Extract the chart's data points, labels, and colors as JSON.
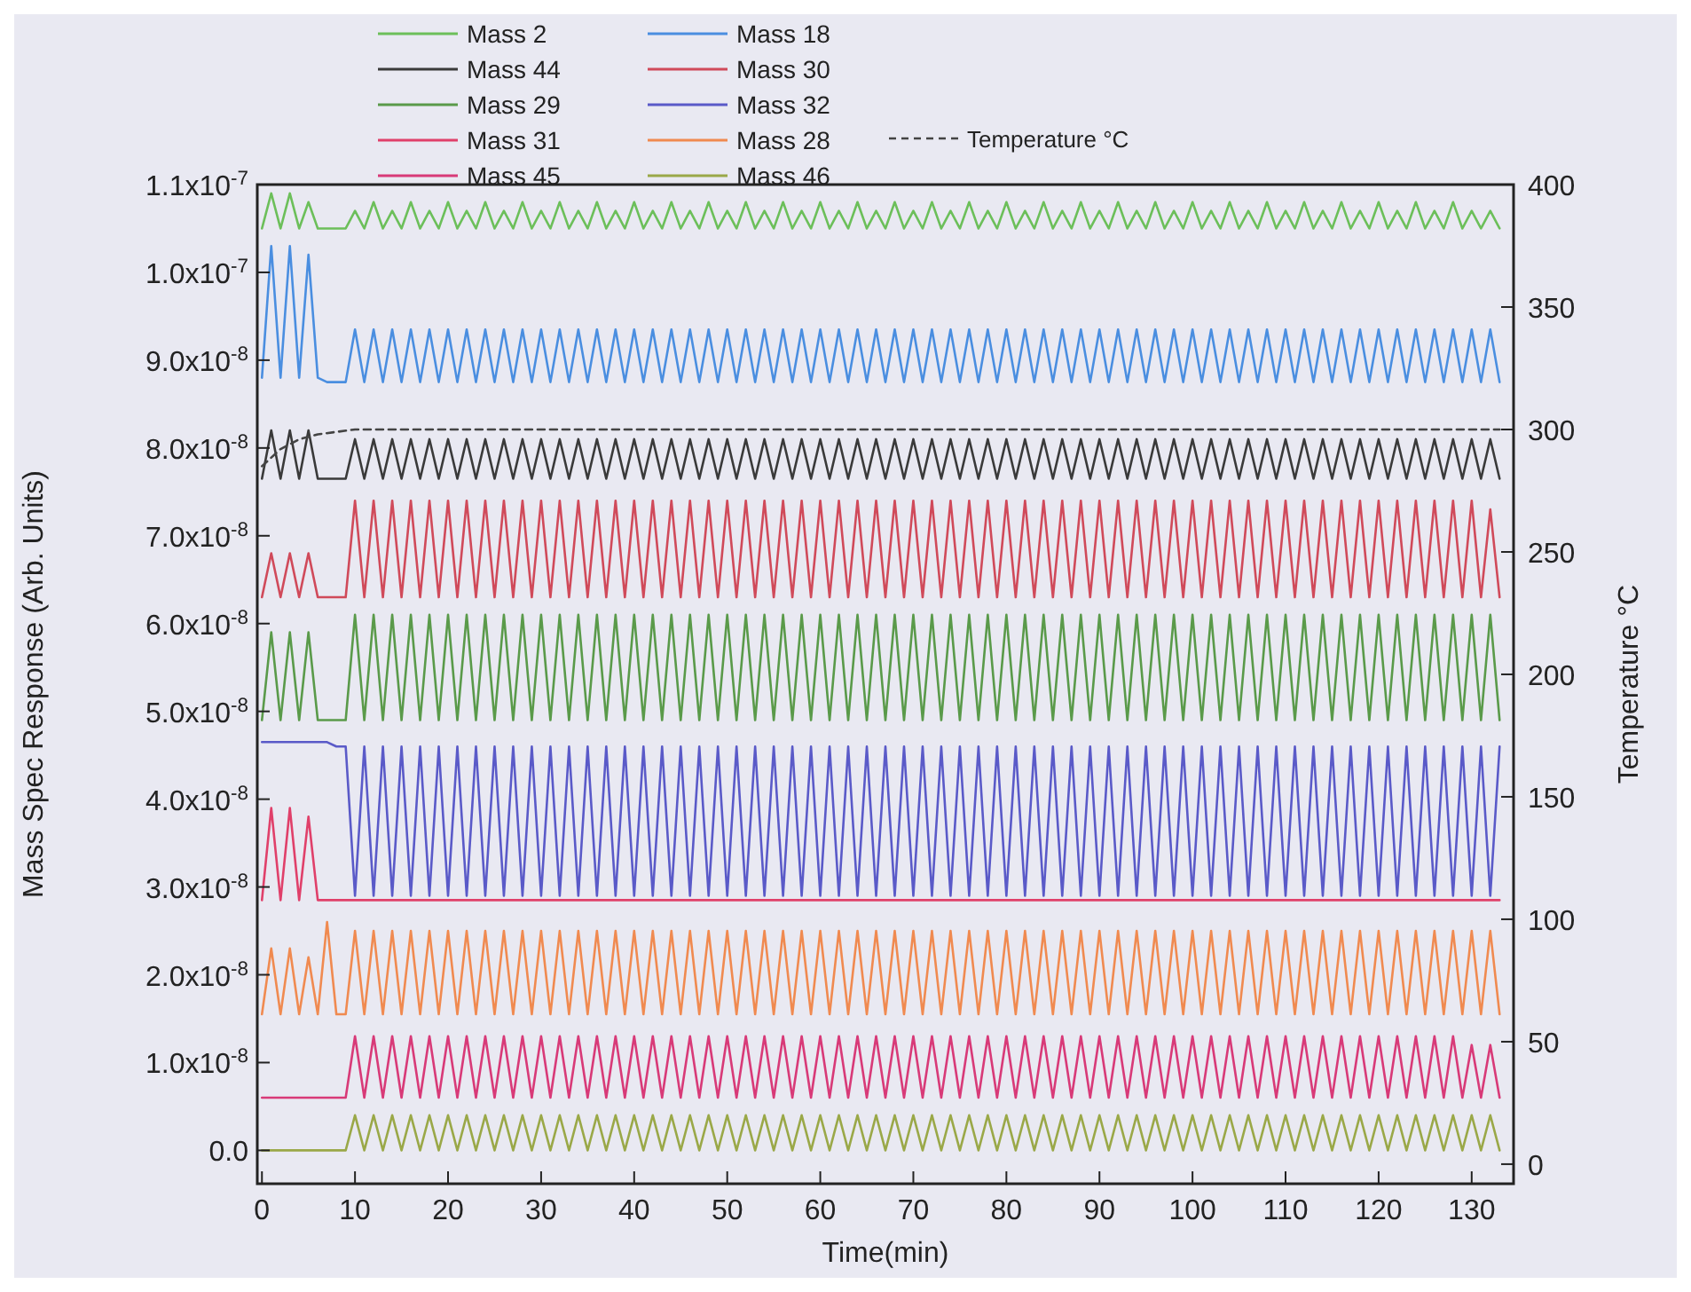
{
  "chart_data": {
    "type": "line",
    "xlabel": "Time(min)",
    "ylabel": "Mass Spec Response (Arb. Units)",
    "y2label": "Temperature °C",
    "x": [
      0,
      1,
      2,
      3,
      4,
      5,
      6,
      7,
      8,
      9,
      10,
      11,
      12,
      13,
      14,
      15,
      16,
      17,
      18,
      19,
      20,
      21,
      22,
      23,
      24,
      25,
      26,
      27,
      28,
      29,
      30,
      31,
      32,
      33,
      34,
      35,
      36,
      37,
      38,
      39,
      40,
      41,
      42,
      43,
      44,
      45,
      46,
      47,
      48,
      49,
      50,
      51,
      52,
      53,
      54,
      55,
      56,
      57,
      58,
      59,
      60,
      61,
      62,
      63,
      64,
      65,
      66,
      67,
      68,
      69,
      70,
      71,
      72,
      73,
      74,
      75,
      76,
      77,
      78,
      79,
      80,
      81,
      82,
      83,
      84,
      85,
      86,
      87,
      88,
      89,
      90,
      91,
      92,
      93,
      94,
      95,
      96,
      97,
      98,
      99,
      100,
      101,
      102,
      103,
      104,
      105,
      106,
      107,
      108,
      109,
      110,
      111,
      112,
      113,
      114,
      115,
      116,
      117,
      118,
      119,
      120,
      121,
      122,
      123,
      124,
      125,
      126,
      127,
      128,
      129,
      130,
      131,
      132,
      133
    ],
    "xlim": [
      -0.5,
      134.5
    ],
    "xticks": [
      0,
      10,
      20,
      30,
      40,
      50,
      60,
      70,
      80,
      90,
      100,
      110,
      120,
      130
    ],
    "ylim": [
      -3.8e-09,
      1.1e-07
    ],
    "yticks": [
      {
        "value": 0,
        "label": "0.0"
      },
      {
        "value": 1e-08,
        "label": "1.0x10$^{-8}$"
      },
      {
        "value": 2e-08,
        "label": "2.0x10$^{-8}$"
      },
      {
        "value": 3e-08,
        "label": "3.0x10$^{-8}$"
      },
      {
        "value": 4e-08,
        "label": "4.0x10$^{-8}$"
      },
      {
        "value": 5e-08,
        "label": "5.0x10$^{-8}$"
      },
      {
        "value": 6e-08,
        "label": "6.0x10$^{-8}$"
      },
      {
        "value": 7e-08,
        "label": "7.0x10$^{-8}$"
      },
      {
        "value": 8e-08,
        "label": "8.0x10$^{-8}$"
      },
      {
        "value": 9e-08,
        "label": "9.0x10$^{-8}$"
      },
      {
        "value": 1e-07,
        "label": "1.0x10$^{-7}$"
      },
      {
        "value": 1.1e-07,
        "label": "1.1x10$^{-7}$"
      }
    ],
    "y2lim": [
      -8,
      400
    ],
    "y2ticks": [
      0,
      50,
      100,
      150,
      200,
      250,
      300,
      350,
      400
    ],
    "grid": false,
    "legend": "top",
    "series": [
      {
        "name": "Mass 2",
        "color": "#6cbf5a",
        "values": [
          1.05e-07,
          1.09e-07,
          1.05e-07,
          1.09e-07,
          1.05e-07,
          1.08e-07,
          1.05e-07,
          1.05e-07,
          1.05e-07,
          1.05e-07,
          1.07e-07,
          1.05e-07,
          1.08e-07,
          1.05e-07,
          1.07e-07,
          1.05e-07,
          1.08e-07,
          1.05e-07,
          1.07e-07,
          1.05e-07,
          1.08e-07,
          1.05e-07,
          1.07e-07,
          1.05e-07,
          1.08e-07,
          1.05e-07,
          1.07e-07,
          1.05e-07,
          1.08e-07,
          1.05e-07,
          1.07e-07,
          1.05e-07,
          1.08e-07,
          1.05e-07,
          1.07e-07,
          1.05e-07,
          1.08e-07,
          1.05e-07,
          1.07e-07,
          1.05e-07,
          1.08e-07,
          1.05e-07,
          1.07e-07,
          1.05e-07,
          1.08e-07,
          1.05e-07,
          1.07e-07,
          1.05e-07,
          1.08e-07,
          1.05e-07,
          1.07e-07,
          1.05e-07,
          1.08e-07,
          1.05e-07,
          1.07e-07,
          1.05e-07,
          1.08e-07,
          1.05e-07,
          1.07e-07,
          1.05e-07,
          1.08e-07,
          1.05e-07,
          1.07e-07,
          1.05e-07,
          1.08e-07,
          1.05e-07,
          1.07e-07,
          1.05e-07,
          1.08e-07,
          1.05e-07,
          1.07e-07,
          1.05e-07,
          1.08e-07,
          1.05e-07,
          1.07e-07,
          1.05e-07,
          1.08e-07,
          1.05e-07,
          1.07e-07,
          1.05e-07,
          1.08e-07,
          1.05e-07,
          1.07e-07,
          1.05e-07,
          1.08e-07,
          1.05e-07,
          1.07e-07,
          1.05e-07,
          1.08e-07,
          1.05e-07,
          1.07e-07,
          1.05e-07,
          1.08e-07,
          1.05e-07,
          1.07e-07,
          1.05e-07,
          1.08e-07,
          1.05e-07,
          1.07e-07,
          1.05e-07,
          1.08e-07,
          1.05e-07,
          1.07e-07,
          1.05e-07,
          1.08e-07,
          1.05e-07,
          1.07e-07,
          1.05e-07,
          1.08e-07,
          1.05e-07,
          1.07e-07,
          1.05e-07,
          1.08e-07,
          1.05e-07,
          1.07e-07,
          1.05e-07,
          1.08e-07,
          1.05e-07,
          1.07e-07,
          1.05e-07,
          1.08e-07,
          1.05e-07,
          1.07e-07,
          1.05e-07,
          1.08e-07,
          1.05e-07,
          1.07e-07,
          1.05e-07,
          1.08e-07,
          1.05e-07,
          1.07e-07,
          1.05e-07,
          1.07e-07,
          1.05e-07
        ]
      },
      {
        "name": "Mass 18",
        "color": "#4a8ee0",
        "values": [
          8.8e-08,
          1.03e-07,
          8.8e-08,
          1.03e-07,
          8.8e-08,
          1.02e-07,
          8.8e-08,
          8.75e-08,
          8.75e-08,
          8.75e-08,
          9.35e-08,
          8.75e-08,
          9.35e-08,
          8.75e-08,
          9.35e-08,
          8.75e-08,
          9.35e-08,
          8.75e-08,
          9.35e-08,
          8.75e-08,
          9.35e-08,
          8.75e-08,
          9.35e-08,
          8.75e-08,
          9.35e-08,
          8.75e-08,
          9.35e-08,
          8.75e-08,
          9.35e-08,
          8.75e-08,
          9.35e-08,
          8.75e-08,
          9.35e-08,
          8.75e-08,
          9.35e-08,
          8.75e-08,
          9.35e-08,
          8.75e-08,
          9.35e-08,
          8.75e-08,
          9.35e-08,
          8.75e-08,
          9.35e-08,
          8.75e-08,
          9.35e-08,
          8.75e-08,
          9.35e-08,
          8.75e-08,
          9.35e-08,
          8.75e-08,
          9.35e-08,
          8.75e-08,
          9.35e-08,
          8.75e-08,
          9.35e-08,
          8.75e-08,
          9.35e-08,
          8.75e-08,
          9.35e-08,
          8.75e-08,
          9.35e-08,
          8.75e-08,
          9.35e-08,
          8.75e-08,
          9.35e-08,
          8.75e-08,
          9.35e-08,
          8.75e-08,
          9.35e-08,
          8.75e-08,
          9.35e-08,
          8.75e-08,
          9.35e-08,
          8.75e-08,
          9.35e-08,
          8.75e-08,
          9.35e-08,
          8.75e-08,
          9.35e-08,
          8.75e-08,
          9.35e-08,
          8.75e-08,
          9.35e-08,
          8.75e-08,
          9.35e-08,
          8.75e-08,
          9.35e-08,
          8.75e-08,
          9.35e-08,
          8.75e-08,
          9.35e-08,
          8.75e-08,
          9.35e-08,
          8.75e-08,
          9.35e-08,
          8.75e-08,
          9.35e-08,
          8.75e-08,
          9.35e-08,
          8.75e-08,
          9.35e-08,
          8.75e-08,
          9.35e-08,
          8.75e-08,
          9.35e-08,
          8.75e-08,
          9.35e-08,
          8.75e-08,
          9.35e-08,
          8.75e-08,
          9.35e-08,
          8.75e-08,
          9.35e-08,
          8.75e-08,
          9.35e-08,
          8.75e-08,
          9.35e-08,
          8.75e-08,
          9.35e-08,
          8.75e-08,
          9.35e-08,
          8.75e-08,
          9.35e-08,
          8.75e-08,
          9.35e-08,
          8.75e-08,
          9.35e-08,
          8.75e-08,
          9.35e-08,
          8.75e-08,
          9.35e-08,
          8.75e-08,
          9.35e-08,
          8.75e-08
        ]
      },
      {
        "name": "Mass 44",
        "color": "#3a3a3a",
        "values": [
          7.65e-08,
          8.2e-08,
          7.65e-08,
          8.2e-08,
          7.65e-08,
          8.2e-08,
          7.65e-08,
          7.65e-08,
          7.65e-08,
          7.65e-08,
          8.1e-08,
          7.65e-08,
          8.1e-08,
          7.65e-08,
          8.1e-08,
          7.65e-08,
          8.1e-08,
          7.65e-08,
          8.1e-08,
          7.65e-08,
          8.1e-08,
          7.65e-08,
          8.1e-08,
          7.65e-08,
          8.1e-08,
          7.65e-08,
          8.1e-08,
          7.65e-08,
          8.1e-08,
          7.65e-08,
          8.1e-08,
          7.65e-08,
          8.1e-08,
          7.65e-08,
          8.1e-08,
          7.65e-08,
          8.1e-08,
          7.65e-08,
          8.1e-08,
          7.65e-08,
          8.1e-08,
          7.65e-08,
          8.1e-08,
          7.65e-08,
          8.1e-08,
          7.65e-08,
          8.1e-08,
          7.65e-08,
          8.1e-08,
          7.65e-08,
          8.1e-08,
          7.65e-08,
          8.1e-08,
          7.65e-08,
          8.1e-08,
          7.65e-08,
          8.1e-08,
          7.65e-08,
          8.1e-08,
          7.65e-08,
          8.1e-08,
          7.65e-08,
          8.1e-08,
          7.65e-08,
          8.1e-08,
          7.65e-08,
          8.1e-08,
          7.65e-08,
          8.1e-08,
          7.65e-08,
          8.1e-08,
          7.65e-08,
          8.1e-08,
          7.65e-08,
          8.1e-08,
          7.65e-08,
          8.1e-08,
          7.65e-08,
          8.1e-08,
          7.65e-08,
          8.1e-08,
          7.65e-08,
          8.1e-08,
          7.65e-08,
          8.1e-08,
          7.65e-08,
          8.1e-08,
          7.65e-08,
          8.1e-08,
          7.65e-08,
          8.1e-08,
          7.65e-08,
          8.1e-08,
          7.65e-08,
          8.1e-08,
          7.65e-08,
          8.1e-08,
          7.65e-08,
          8.1e-08,
          7.65e-08,
          8.1e-08,
          7.65e-08,
          8.1e-08,
          7.65e-08,
          8.1e-08,
          7.65e-08,
          8.1e-08,
          7.65e-08,
          8.1e-08,
          7.65e-08,
          8.1e-08,
          7.65e-08,
          8.1e-08,
          7.65e-08,
          8.1e-08,
          7.65e-08,
          8.1e-08,
          7.65e-08,
          8.1e-08,
          7.65e-08,
          8.1e-08,
          7.65e-08,
          8.1e-08,
          7.65e-08,
          8.1e-08,
          7.65e-08,
          8.1e-08,
          7.65e-08,
          8.1e-08,
          7.65e-08,
          8.1e-08,
          7.65e-08,
          8.1e-08,
          7.65e-08
        ]
      },
      {
        "name": "Mass 30",
        "color": "#d04a5a",
        "values": [
          6.3e-08,
          6.8e-08,
          6.3e-08,
          6.8e-08,
          6.3e-08,
          6.8e-08,
          6.3e-08,
          6.3e-08,
          6.3e-08,
          6.3e-08,
          7.4e-08,
          6.3e-08,
          7.4e-08,
          6.3e-08,
          7.4e-08,
          6.3e-08,
          7.4e-08,
          6.3e-08,
          7.4e-08,
          6.3e-08,
          7.4e-08,
          6.3e-08,
          7.4e-08,
          6.3e-08,
          7.4e-08,
          6.3e-08,
          7.4e-08,
          6.3e-08,
          7.4e-08,
          6.3e-08,
          7.4e-08,
          6.3e-08,
          7.4e-08,
          6.3e-08,
          7.4e-08,
          6.3e-08,
          7.4e-08,
          6.3e-08,
          7.4e-08,
          6.3e-08,
          7.4e-08,
          6.3e-08,
          7.4e-08,
          6.3e-08,
          7.4e-08,
          6.3e-08,
          7.4e-08,
          6.3e-08,
          7.4e-08,
          6.3e-08,
          7.4e-08,
          6.3e-08,
          7.4e-08,
          6.3e-08,
          7.4e-08,
          6.3e-08,
          7.4e-08,
          6.3e-08,
          7.4e-08,
          6.3e-08,
          7.4e-08,
          6.3e-08,
          7.4e-08,
          6.3e-08,
          7.4e-08,
          6.3e-08,
          7.4e-08,
          6.3e-08,
          7.4e-08,
          6.3e-08,
          7.4e-08,
          6.3e-08,
          7.4e-08,
          6.3e-08,
          7.4e-08,
          6.3e-08,
          7.4e-08,
          6.3e-08,
          7.4e-08,
          6.3e-08,
          7.4e-08,
          6.3e-08,
          7.4e-08,
          6.3e-08,
          7.4e-08,
          6.3e-08,
          7.4e-08,
          6.3e-08,
          7.4e-08,
          6.3e-08,
          7.4e-08,
          6.3e-08,
          7.4e-08,
          6.3e-08,
          7.4e-08,
          6.3e-08,
          7.4e-08,
          6.3e-08,
          7.4e-08,
          6.3e-08,
          7.4e-08,
          6.3e-08,
          7.4e-08,
          6.3e-08,
          7.4e-08,
          6.3e-08,
          7.4e-08,
          6.3e-08,
          7.4e-08,
          6.3e-08,
          7.4e-08,
          6.3e-08,
          7.4e-08,
          6.3e-08,
          7.4e-08,
          6.3e-08,
          7.4e-08,
          6.3e-08,
          7.4e-08,
          6.3e-08,
          7.4e-08,
          6.3e-08,
          7.4e-08,
          6.3e-08,
          7.4e-08,
          6.3e-08,
          7.4e-08,
          6.3e-08,
          7.4e-08,
          6.3e-08,
          7.4e-08,
          6.3e-08,
          7.3e-08,
          6.3e-08
        ]
      },
      {
        "name": "Mass 29",
        "color": "#5a9a4a",
        "values": [
          4.9e-08,
          5.9e-08,
          4.9e-08,
          5.9e-08,
          4.9e-08,
          5.9e-08,
          4.9e-08,
          4.9e-08,
          4.9e-08,
          4.9e-08,
          6.1e-08,
          4.9e-08,
          6.1e-08,
          4.9e-08,
          6.1e-08,
          4.9e-08,
          6.1e-08,
          4.9e-08,
          6.1e-08,
          4.9e-08,
          6.1e-08,
          4.9e-08,
          6.1e-08,
          4.9e-08,
          6.1e-08,
          4.9e-08,
          6.1e-08,
          4.9e-08,
          6.1e-08,
          4.9e-08,
          6.1e-08,
          4.9e-08,
          6.1e-08,
          4.9e-08,
          6.1e-08,
          4.9e-08,
          6.1e-08,
          4.9e-08,
          6.1e-08,
          4.9e-08,
          6.1e-08,
          4.9e-08,
          6.1e-08,
          4.9e-08,
          6.1e-08,
          4.9e-08,
          6.1e-08,
          4.9e-08,
          6.1e-08,
          4.9e-08,
          6.1e-08,
          4.9e-08,
          6.1e-08,
          4.9e-08,
          6.1e-08,
          4.9e-08,
          6.1e-08,
          4.9e-08,
          6.1e-08,
          4.9e-08,
          6.1e-08,
          4.9e-08,
          6.1e-08,
          4.9e-08,
          6.1e-08,
          4.9e-08,
          6.1e-08,
          4.9e-08,
          6.1e-08,
          4.9e-08,
          6.1e-08,
          4.9e-08,
          6.1e-08,
          4.9e-08,
          6.1e-08,
          4.9e-08,
          6.1e-08,
          4.9e-08,
          6.1e-08,
          4.9e-08,
          6.1e-08,
          4.9e-08,
          6.1e-08,
          4.9e-08,
          6.1e-08,
          4.9e-08,
          6.1e-08,
          4.9e-08,
          6.1e-08,
          4.9e-08,
          6.1e-08,
          4.9e-08,
          6.1e-08,
          4.9e-08,
          6.1e-08,
          4.9e-08,
          6.1e-08,
          4.9e-08,
          6.1e-08,
          4.9e-08,
          6.1e-08,
          4.9e-08,
          6.1e-08,
          4.9e-08,
          6.1e-08,
          4.9e-08,
          6.1e-08,
          4.9e-08,
          6.1e-08,
          4.9e-08,
          6.1e-08,
          4.9e-08,
          6.1e-08,
          4.9e-08,
          6.1e-08,
          4.9e-08,
          6.1e-08,
          4.9e-08,
          6.1e-08,
          4.9e-08,
          6.1e-08,
          4.9e-08,
          6.1e-08,
          4.9e-08,
          6.1e-08,
          4.9e-08,
          6.1e-08,
          4.9e-08,
          6.1e-08,
          4.9e-08,
          6.1e-08,
          4.9e-08,
          6.1e-08,
          4.9e-08
        ]
      },
      {
        "name": "Mass 32",
        "color": "#5a5ac8",
        "values": [
          4.65e-08,
          4.65e-08,
          4.65e-08,
          4.65e-08,
          4.65e-08,
          4.65e-08,
          4.65e-08,
          4.65e-08,
          4.6e-08,
          4.6e-08,
          2.9e-08,
          4.6e-08,
          2.9e-08,
          4.6e-08,
          2.9e-08,
          4.6e-08,
          2.9e-08,
          4.6e-08,
          2.9e-08,
          4.6e-08,
          2.9e-08,
          4.6e-08,
          2.9e-08,
          4.6e-08,
          2.9e-08,
          4.6e-08,
          2.9e-08,
          4.6e-08,
          2.9e-08,
          4.6e-08,
          2.9e-08,
          4.6e-08,
          2.9e-08,
          4.6e-08,
          2.9e-08,
          4.6e-08,
          2.9e-08,
          4.6e-08,
          2.9e-08,
          4.6e-08,
          2.9e-08,
          4.6e-08,
          2.9e-08,
          4.6e-08,
          2.9e-08,
          4.6e-08,
          2.9e-08,
          4.6e-08,
          2.9e-08,
          4.6e-08,
          2.9e-08,
          4.6e-08,
          2.9e-08,
          4.6e-08,
          2.9e-08,
          4.6e-08,
          2.9e-08,
          4.6e-08,
          2.9e-08,
          4.6e-08,
          2.9e-08,
          4.6e-08,
          2.9e-08,
          4.6e-08,
          2.9e-08,
          4.6e-08,
          2.9e-08,
          4.6e-08,
          2.9e-08,
          4.6e-08,
          2.9e-08,
          4.6e-08,
          2.9e-08,
          4.6e-08,
          2.9e-08,
          4.6e-08,
          2.9e-08,
          4.6e-08,
          2.9e-08,
          4.6e-08,
          2.9e-08,
          4.6e-08,
          2.9e-08,
          4.6e-08,
          2.9e-08,
          4.6e-08,
          2.9e-08,
          4.6e-08,
          2.9e-08,
          4.6e-08,
          2.9e-08,
          4.6e-08,
          2.9e-08,
          4.6e-08,
          2.9e-08,
          4.6e-08,
          2.9e-08,
          4.6e-08,
          2.9e-08,
          4.6e-08,
          2.9e-08,
          4.6e-08,
          2.9e-08,
          4.6e-08,
          2.9e-08,
          4.6e-08,
          2.9e-08,
          4.6e-08,
          2.9e-08,
          4.6e-08,
          2.9e-08,
          4.6e-08,
          2.9e-08,
          4.6e-08,
          2.9e-08,
          4.6e-08,
          2.9e-08,
          4.6e-08,
          2.9e-08,
          4.6e-08,
          2.9e-08,
          4.6e-08,
          2.9e-08,
          4.6e-08,
          2.9e-08,
          4.6e-08,
          2.9e-08,
          4.6e-08,
          2.9e-08,
          4.6e-08,
          2.9e-08,
          4.6e-08,
          2.9e-08,
          4.6e-08
        ]
      },
      {
        "name": "Mass 31",
        "color": "#e0406a",
        "values": [
          2.85e-08,
          3.9e-08,
          2.85e-08,
          3.9e-08,
          2.85e-08,
          3.8e-08,
          2.85e-08,
          2.85e-08,
          2.85e-08,
          2.85e-08,
          2.85e-08,
          2.85e-08,
          2.85e-08,
          2.85e-08,
          2.85e-08,
          2.85e-08,
          2.85e-08,
          2.85e-08,
          2.85e-08,
          2.85e-08,
          2.85e-08,
          2.85e-08,
          2.85e-08,
          2.85e-08,
          2.85e-08,
          2.85e-08,
          2.85e-08,
          2.85e-08,
          2.85e-08,
          2.85e-08,
          2.85e-08,
          2.85e-08,
          2.85e-08,
          2.85e-08,
          2.85e-08,
          2.85e-08,
          2.85e-08,
          2.85e-08,
          2.85e-08,
          2.85e-08,
          2.85e-08,
          2.85e-08,
          2.85e-08,
          2.85e-08,
          2.85e-08,
          2.85e-08,
          2.85e-08,
          2.85e-08,
          2.85e-08,
          2.85e-08,
          2.85e-08,
          2.85e-08,
          2.85e-08,
          2.85e-08,
          2.85e-08,
          2.85e-08,
          2.85e-08,
          2.85e-08,
          2.85e-08,
          2.85e-08,
          2.85e-08,
          2.85e-08,
          2.85e-08,
          2.85e-08,
          2.85e-08,
          2.85e-08,
          2.85e-08,
          2.85e-08,
          2.85e-08,
          2.85e-08,
          2.85e-08,
          2.85e-08,
          2.85e-08,
          2.85e-08,
          2.85e-08,
          2.85e-08,
          2.85e-08,
          2.85e-08,
          2.85e-08,
          2.85e-08,
          2.85e-08,
          2.85e-08,
          2.85e-08,
          2.85e-08,
          2.85e-08,
          2.85e-08,
          2.85e-08,
          2.85e-08,
          2.85e-08,
          2.85e-08,
          2.85e-08,
          2.85e-08,
          2.85e-08,
          2.85e-08,
          2.85e-08,
          2.85e-08,
          2.85e-08,
          2.85e-08,
          2.85e-08,
          2.85e-08,
          2.85e-08,
          2.85e-08,
          2.85e-08,
          2.85e-08,
          2.85e-08,
          2.85e-08,
          2.85e-08,
          2.85e-08,
          2.85e-08,
          2.85e-08,
          2.85e-08,
          2.85e-08,
          2.85e-08,
          2.85e-08,
          2.85e-08,
          2.85e-08,
          2.85e-08,
          2.85e-08,
          2.85e-08,
          2.85e-08,
          2.85e-08,
          2.85e-08,
          2.85e-08,
          2.85e-08,
          2.85e-08,
          2.85e-08,
          2.85e-08,
          2.85e-08,
          2.85e-08,
          2.85e-08,
          2.85e-08,
          2.85e-08,
          2.85e-08,
          2.85e-08
        ]
      },
      {
        "name": "Mass 28",
        "color": "#f08a50",
        "values": [
          1.55e-08,
          2.3e-08,
          1.55e-08,
          2.3e-08,
          1.55e-08,
          2.2e-08,
          1.55e-08,
          2.6e-08,
          1.55e-08,
          1.55e-08,
          2.5e-08,
          1.55e-08,
          2.5e-08,
          1.55e-08,
          2.5e-08,
          1.55e-08,
          2.5e-08,
          1.55e-08,
          2.5e-08,
          1.55e-08,
          2.5e-08,
          1.55e-08,
          2.5e-08,
          1.55e-08,
          2.5e-08,
          1.55e-08,
          2.5e-08,
          1.55e-08,
          2.5e-08,
          1.55e-08,
          2.5e-08,
          1.55e-08,
          2.5e-08,
          1.55e-08,
          2.5e-08,
          1.55e-08,
          2.5e-08,
          1.55e-08,
          2.5e-08,
          1.55e-08,
          2.5e-08,
          1.55e-08,
          2.5e-08,
          1.55e-08,
          2.5e-08,
          1.55e-08,
          2.5e-08,
          1.55e-08,
          2.5e-08,
          1.55e-08,
          2.5e-08,
          1.55e-08,
          2.5e-08,
          1.55e-08,
          2.5e-08,
          1.55e-08,
          2.5e-08,
          1.55e-08,
          2.5e-08,
          1.55e-08,
          2.5e-08,
          1.55e-08,
          2.5e-08,
          1.55e-08,
          2.5e-08,
          1.55e-08,
          2.5e-08,
          1.55e-08,
          2.5e-08,
          1.55e-08,
          2.5e-08,
          1.55e-08,
          2.5e-08,
          1.55e-08,
          2.5e-08,
          1.55e-08,
          2.5e-08,
          1.55e-08,
          2.5e-08,
          1.55e-08,
          2.5e-08,
          1.55e-08,
          2.5e-08,
          1.55e-08,
          2.5e-08,
          1.55e-08,
          2.5e-08,
          1.55e-08,
          2.5e-08,
          1.55e-08,
          2.5e-08,
          1.55e-08,
          2.5e-08,
          1.55e-08,
          2.5e-08,
          1.55e-08,
          2.5e-08,
          1.55e-08,
          2.5e-08,
          1.55e-08,
          2.5e-08,
          1.55e-08,
          2.5e-08,
          1.55e-08,
          2.5e-08,
          1.55e-08,
          2.5e-08,
          1.55e-08,
          2.5e-08,
          1.55e-08,
          2.5e-08,
          1.55e-08,
          2.5e-08,
          1.55e-08,
          2.5e-08,
          1.55e-08,
          2.5e-08,
          1.55e-08,
          2.5e-08,
          1.55e-08,
          2.5e-08,
          1.55e-08,
          2.5e-08,
          1.55e-08,
          2.5e-08,
          1.55e-08,
          2.5e-08,
          1.55e-08,
          2.5e-08,
          1.55e-08,
          2.5e-08,
          1.55e-08,
          2.5e-08,
          1.55e-08
        ]
      },
      {
        "name": "Mass 45",
        "color": "#d83a78",
        "values": [
          6e-09,
          6e-09,
          6e-09,
          6e-09,
          6e-09,
          6e-09,
          6e-09,
          6e-09,
          6e-09,
          6e-09,
          1.3e-08,
          6e-09,
          1.3e-08,
          6e-09,
          1.3e-08,
          6e-09,
          1.3e-08,
          6e-09,
          1.3e-08,
          6e-09,
          1.3e-08,
          6e-09,
          1.3e-08,
          6e-09,
          1.3e-08,
          6e-09,
          1.3e-08,
          6e-09,
          1.3e-08,
          6e-09,
          1.3e-08,
          6e-09,
          1.3e-08,
          6e-09,
          1.3e-08,
          6e-09,
          1.3e-08,
          6e-09,
          1.3e-08,
          6e-09,
          1.3e-08,
          6e-09,
          1.3e-08,
          6e-09,
          1.3e-08,
          6e-09,
          1.3e-08,
          6e-09,
          1.3e-08,
          6e-09,
          1.3e-08,
          6e-09,
          1.3e-08,
          6e-09,
          1.3e-08,
          6e-09,
          1.3e-08,
          6e-09,
          1.3e-08,
          6e-09,
          1.3e-08,
          6e-09,
          1.3e-08,
          6e-09,
          1.3e-08,
          6e-09,
          1.3e-08,
          6e-09,
          1.3e-08,
          6e-09,
          1.3e-08,
          6e-09,
          1.3e-08,
          6e-09,
          1.3e-08,
          6e-09,
          1.3e-08,
          6e-09,
          1.3e-08,
          6e-09,
          1.3e-08,
          6e-09,
          1.3e-08,
          6e-09,
          1.3e-08,
          6e-09,
          1.3e-08,
          6e-09,
          1.3e-08,
          6e-09,
          1.3e-08,
          6e-09,
          1.3e-08,
          6e-09,
          1.3e-08,
          6e-09,
          1.3e-08,
          6e-09,
          1.3e-08,
          6e-09,
          1.3e-08,
          6e-09,
          1.3e-08,
          6e-09,
          1.3e-08,
          6e-09,
          1.3e-08,
          6e-09,
          1.3e-08,
          6e-09,
          1.3e-08,
          6e-09,
          1.3e-08,
          6e-09,
          1.3e-08,
          6e-09,
          1.3e-08,
          6e-09,
          1.3e-08,
          6e-09,
          1.3e-08,
          6e-09,
          1.3e-08,
          6e-09,
          1.3e-08,
          6e-09,
          1.3e-08,
          6e-09,
          1.3e-08,
          6e-09,
          1.2e-08,
          6e-09,
          1.2e-08,
          6e-09
        ]
      },
      {
        "name": "Mass 46",
        "color": "#9aa848",
        "values": [
          0,
          0,
          0,
          0,
          0,
          0,
          0,
          0,
          0,
          0,
          4e-09,
          0,
          4e-09,
          0,
          4e-09,
          0,
          4e-09,
          0,
          4e-09,
          0,
          4e-09,
          0,
          4e-09,
          0,
          4e-09,
          0,
          4e-09,
          0,
          4e-09,
          0,
          4e-09,
          0,
          4e-09,
          0,
          4e-09,
          0,
          4e-09,
          0,
          4e-09,
          0,
          4e-09,
          0,
          4e-09,
          0,
          4e-09,
          0,
          4e-09,
          0,
          4e-09,
          0,
          4e-09,
          0,
          4e-09,
          0,
          4e-09,
          0,
          4e-09,
          0,
          4e-09,
          0,
          4e-09,
          0,
          4e-09,
          0,
          4e-09,
          0,
          4e-09,
          0,
          4e-09,
          0,
          4e-09,
          0,
          4e-09,
          0,
          4e-09,
          0,
          4e-09,
          0,
          4e-09,
          0,
          4e-09,
          0,
          4e-09,
          0,
          4e-09,
          0,
          4e-09,
          0,
          4e-09,
          0,
          4e-09,
          0,
          4e-09,
          0,
          4e-09,
          0,
          4e-09,
          0,
          4e-09,
          0,
          4e-09,
          0,
          4e-09,
          0,
          4e-09,
          0,
          4e-09,
          0,
          4e-09,
          0,
          4e-09,
          0,
          4e-09,
          0,
          4e-09,
          0,
          4e-09,
          0,
          4e-09,
          0,
          4e-09,
          0,
          4e-09,
          0,
          4e-09,
          0,
          4e-09,
          0,
          4e-09,
          0,
          4e-09,
          0,
          4e-09,
          0
        ]
      },
      {
        "name": "Temperature °C",
        "color": "#444444",
        "axis": "y2",
        "line_style": "dashed",
        "x": [
          0,
          2,
          4,
          6,
          8,
          10,
          20,
          133
        ],
        "values": [
          285,
          292,
          296,
          298,
          299,
          300,
          300,
          300
        ]
      }
    ]
  }
}
